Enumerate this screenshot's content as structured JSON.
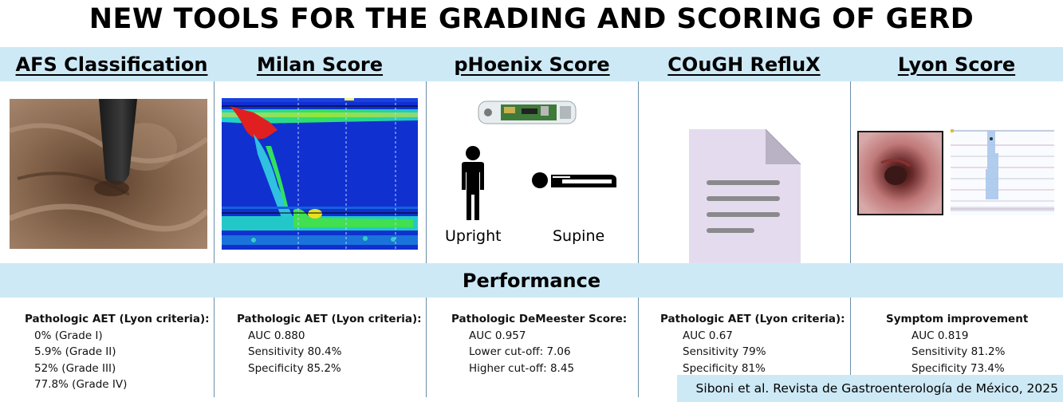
{
  "title": "NEW TOOLS FOR THE GRADING AND SCORING OF GERD",
  "columns": [
    {
      "title": "AFS Classification"
    },
    {
      "title": "Milan Score"
    },
    {
      "title": "pHoenix Score"
    },
    {
      "title": "COuGH RefluX"
    },
    {
      "title": "Lyon Score"
    }
  ],
  "phoenix": {
    "upright_label": "Upright",
    "supine_label": "Supine"
  },
  "performance_title": "Performance",
  "stats": [
    {
      "head": "Pathologic AET (Lyon criteria):",
      "lines": [
        "0% (Grade I)",
        "5.9% (Grade II)",
        "52% (Grade III)",
        "77.8% (Grade IV)"
      ]
    },
    {
      "head": "Pathologic AET (Lyon criteria):",
      "lines": [
        "AUC 0.880",
        "Sensitivity 80.4%",
        "Specificity 85.2%"
      ]
    },
    {
      "head": "Pathologic DeMeester Score:",
      "lines": [
        "AUC 0.957",
        "Lower cut-off: 7.06",
        "Higher cut-off: 8.45"
      ]
    },
    {
      "head": "Pathologic AET (Lyon criteria):",
      "lines": [
        "AUC 0.67",
        "Sensitivity 79%",
        "Specificity 81%"
      ]
    },
    {
      "head": "Symptom improvement",
      "lines": [
        "AUC 0.819",
        "Sensitivity 81.2%",
        "Specificity 73.4%"
      ]
    }
  ],
  "citation": "Siboni et al. Revista de Gastroenterología de México, 2025",
  "colors": {
    "band": "#cde9f6",
    "divider": "#6a8fa8",
    "document": "#e6dff0"
  }
}
